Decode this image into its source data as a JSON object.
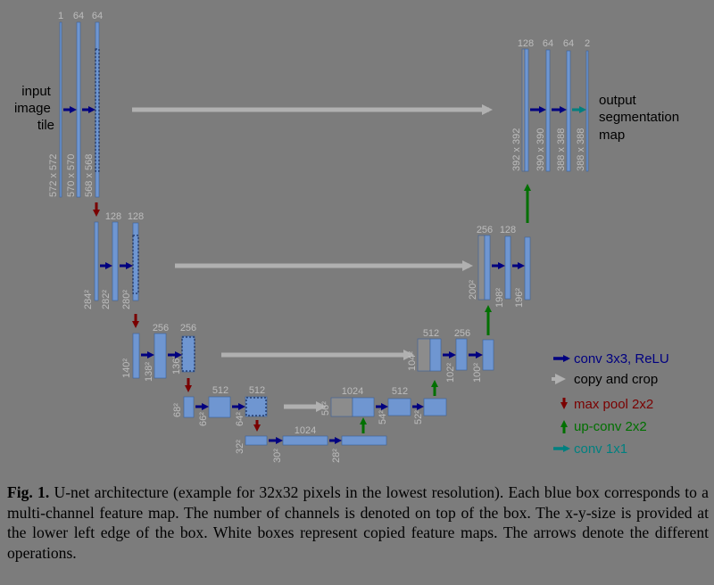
{
  "diagram": {
    "input_label": [
      "input",
      "image",
      "tile"
    ],
    "output_label": [
      "output",
      "segmentation",
      "map"
    ],
    "channels": {
      "L1": [
        "1",
        "64",
        "64"
      ],
      "L2": [
        "128",
        "128"
      ],
      "L3": [
        "256",
        "256"
      ],
      "L4": [
        "512",
        "512"
      ],
      "L5": [
        "1024"
      ],
      "R4": [
        "1024",
        "512"
      ],
      "R3": [
        "512",
        "256"
      ],
      "R2": [
        "256",
        "128"
      ],
      "R1": [
        "128",
        "64",
        "64",
        "2"
      ]
    },
    "sizes": {
      "L1": [
        "572 x 572",
        "570 x 570",
        "568 x 568"
      ],
      "L2": [
        "284²",
        "282²",
        "280²"
      ],
      "L3": [
        "140²",
        "138²",
        "136²"
      ],
      "L4": [
        "68²",
        "66²",
        "64²"
      ],
      "L5": [
        "32²",
        "30²",
        "28²"
      ],
      "R4": [
        "56²",
        "54²",
        "52²"
      ],
      "R3": [
        "104²",
        "102²",
        "100²"
      ],
      "R2": [
        "200²",
        "198²",
        "196²"
      ],
      "R1": [
        "392 x 392",
        "390 x 390",
        "388 x 388",
        "388 x 388"
      ]
    },
    "legend": [
      {
        "label": "conv 3x3, ReLU",
        "color": "#000080",
        "text_color": "#000080",
        "dir": "right"
      },
      {
        "label": "copy and crop",
        "color": "#b4b4b4",
        "text_color": "#000000",
        "dir": "right"
      },
      {
        "label": "max pool 2x2",
        "color": "#7a0000",
        "text_color": "#7a0000",
        "dir": "down"
      },
      {
        "label": "up-conv 2x2",
        "color": "#007000",
        "text_color": "#007000",
        "dir": "up"
      },
      {
        "label": "conv 1x1",
        "color": "#008080",
        "text_color": "#008080",
        "dir": "right"
      }
    ],
    "colors": {
      "box": "#6f96d1",
      "box_edge": "#3a5f9a",
      "white_box": "#8c8c8c",
      "copy_arrow": "#b0b0b0"
    }
  },
  "caption": {
    "label": "Fig. 1.",
    "text": "U-net architecture (example for 32x32 pixels in the lowest resolution). Each blue box corresponds to a multi-channel feature map. The number of channels is denoted on top of the box. The x-y-size is provided at the lower left edge of the box. White boxes represent copied feature maps. The arrows denote the different operations."
  }
}
